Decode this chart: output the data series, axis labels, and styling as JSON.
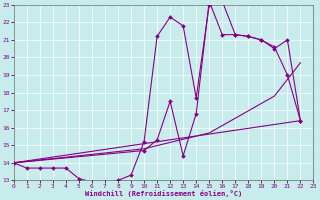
{
  "xlabel": "Windchill (Refroidissement éolien,°C)",
  "bg_color": "#c8ecec",
  "line_color": "#880088",
  "xmin": 0,
  "xmax": 23,
  "ymin": 13,
  "ymax": 23,
  "line1": {
    "x": [
      0,
      1,
      2,
      3,
      4,
      5,
      6,
      7,
      8,
      9,
      10,
      11,
      12,
      13,
      14,
      15,
      16,
      17,
      18,
      19,
      20,
      21,
      22
    ],
    "y": [
      14.0,
      13.7,
      13.7,
      13.7,
      13.7,
      13.1,
      12.9,
      12.9,
      13.0,
      13.3,
      15.2,
      21.2,
      22.3,
      21.8,
      17.7,
      23.0,
      23.2,
      21.3,
      21.2,
      21.0,
      20.6,
      19.0,
      16.4
    ],
    "markers": true
  },
  "line2": {
    "x": [
      0,
      10,
      11,
      12,
      13,
      14,
      15,
      16,
      17,
      18,
      19,
      20,
      21,
      22
    ],
    "y": [
      14.0,
      14.7,
      15.3,
      17.5,
      14.4,
      16.8,
      23.2,
      21.3,
      21.3,
      21.2,
      21.0,
      20.5,
      21.0,
      16.4
    ],
    "markers": true
  },
  "line3": {
    "x": [
      0,
      22
    ],
    "y": [
      14.0,
      16.4
    ],
    "markers": false
  },
  "line4": {
    "x": [
      0,
      10,
      15,
      20,
      22
    ],
    "y": [
      14.0,
      14.8,
      15.7,
      17.8,
      19.7
    ],
    "markers": false
  }
}
